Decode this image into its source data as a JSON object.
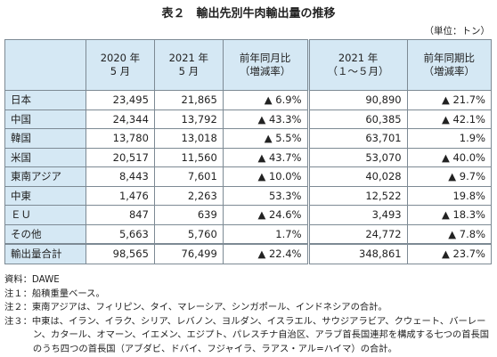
{
  "title": "表２　輸出先別牛肉輸出量の推移",
  "unit": "（単位：トン）",
  "table": {
    "header": [
      "",
      "2020 年\n5 月",
      "2021 年\n5 月",
      "前年同月比\n（増減率）",
      "2021 年\n（１～５月）",
      "前年同期比\n（増減率）"
    ],
    "rows": [
      [
        "日本",
        "23,495",
        "21,865",
        "▲ 6.9%",
        "90,890",
        "▲ 21.7%"
      ],
      [
        "中国",
        "24,344",
        "13,792",
        "▲ 43.3%",
        "60,385",
        "▲ 42.1%"
      ],
      [
        "韓国",
        "13,780",
        "13,018",
        "▲ 5.5%",
        "63,701",
        "1.9%"
      ],
      [
        "米国",
        "20,517",
        "11,560",
        "▲ 43.7%",
        "53,070",
        "▲ 40.0%"
      ],
      [
        "東南アジア",
        "8,443",
        "7,601",
        "▲ 10.0%",
        "40,028",
        "▲ 9.7%"
      ],
      [
        "中東",
        "1,476",
        "2,263",
        "53.3%",
        "12,522",
        "19.8%"
      ],
      [
        "ＥＵ",
        "847",
        "639",
        "▲ 24.6%",
        "3,493",
        "▲ 18.3%"
      ],
      [
        "その他",
        "5,663",
        "5,760",
        "1.7%",
        "24,772",
        "▲ 7.8%"
      ],
      [
        "輸出量合計",
        "98,565",
        "76,499",
        "▲ 22.4%",
        "348,861",
        "▲ 23.7%"
      ]
    ]
  },
  "notes": [
    "資料：DAWE",
    "注１：船積重量ベース。",
    "注２：東南アジアは、フィリピン、タイ、マレーシア、シンガポール、インドネシアの合計。",
    "注３：中東は、イラン、イラク、シリア、レバノン、ヨルダン、イスラエル、サウジアラビア、クウェート、バーレーン、カタール、オマーン、イエメン、エジプト、パレスチナ自治区、アラブ首長国連邦を構成する七つの首長国のうち四つの首長国（アブダビ、ドバイ、フジャイラ、ラアス・アル=ハイマ）の合計。"
  ]
}
